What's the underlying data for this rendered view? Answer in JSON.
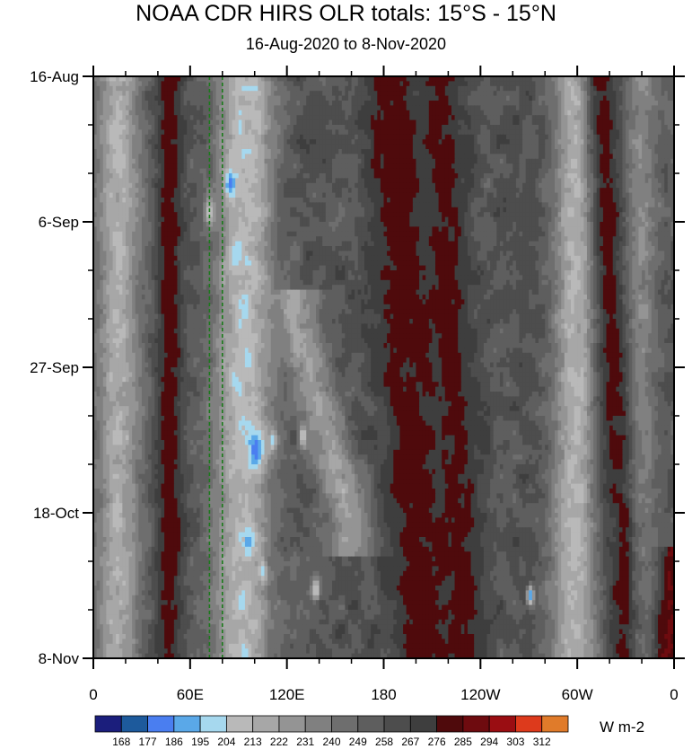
{
  "chart_data": {
    "type": "heatmap",
    "title": "NOAA CDR HIRS OLR totals: 15°S - 15°N",
    "subtitle": "16-Aug-2020 to 8-Nov-2020",
    "x_ticks": [
      {
        "lon": 0,
        "label": "0"
      },
      {
        "lon": 60,
        "label": "60E"
      },
      {
        "lon": 120,
        "label": "120E"
      },
      {
        "lon": 180,
        "label": "180"
      },
      {
        "lon": 240,
        "label": "120W"
      },
      {
        "lon": 300,
        "label": "60W"
      },
      {
        "lon": 360,
        "label": "0"
      }
    ],
    "y_ticks": [
      {
        "day": 0,
        "label": "16-Aug"
      },
      {
        "day": 21,
        "label": "6-Sep"
      },
      {
        "day": 42,
        "label": "27-Sep"
      },
      {
        "day": 63,
        "label": "18-Oct"
      },
      {
        "day": 84,
        "label": "8-Nov"
      }
    ],
    "xlim": [
      0,
      360
    ],
    "ylim_days": [
      0,
      84
    ],
    "reference_lines_lon": [
      72,
      80
    ],
    "units": "W m-2",
    "colorbar": {
      "levels": [
        168,
        177,
        186,
        195,
        204,
        213,
        222,
        231,
        240,
        249,
        258,
        267,
        276,
        285,
        294,
        303,
        312
      ],
      "colors": [
        "#1b1e7c",
        "#1d5a9c",
        "#4a7ef0",
        "#5aa8e8",
        "#a6d8ee",
        "#b9b9b9",
        "#a7a7a7",
        "#949494",
        "#808080",
        "#6e6e6e",
        "#5e5e5e",
        "#4d4d4d",
        "#3e3e3e",
        "#4f0a0c",
        "#6e0b0f",
        "#9a0d12",
        "#dd3a1c",
        "#e07b2a"
      ]
    },
    "features": {
      "convective_bands": [
        {
          "lon0": 15,
          "lon1": 15,
          "day0": 0,
          "day1": 84,
          "olr": 215,
          "width": 14
        },
        {
          "lon0": 95,
          "lon1": 92,
          "day0": 0,
          "day1": 84,
          "olr": 208,
          "width": 18
        },
        {
          "lon0": 125,
          "lon1": 160,
          "day0": 35,
          "day1": 65,
          "olr": 222,
          "width": 14
        },
        {
          "lon0": 300,
          "lon1": 298,
          "day0": 0,
          "day1": 84,
          "olr": 212,
          "width": 14
        },
        {
          "lon0": 340,
          "lon1": 335,
          "day0": 0,
          "day1": 84,
          "olr": 232,
          "width": 12
        }
      ],
      "deep_convection": [
        {
          "lon": 85,
          "day": 15.5,
          "olr": 178,
          "r": 2
        },
        {
          "lon": 72,
          "day": 19.5,
          "olr": 200,
          "r": 2
        },
        {
          "lon": 88,
          "day": 26,
          "olr": 198,
          "r": 2.5
        },
        {
          "lon": 97,
          "day": 40.5,
          "olr": 202,
          "r": 2
        },
        {
          "lon": 88,
          "day": 44,
          "olr": 198,
          "r": 2
        },
        {
          "lon": 101,
          "day": 54,
          "olr": 180,
          "r": 3
        },
        {
          "lon": 111,
          "day": 52.5,
          "olr": 200,
          "r": 1.6
        },
        {
          "lon": 130,
          "day": 52,
          "olr": 196,
          "r": 1.5
        },
        {
          "lon": 96,
          "day": 67,
          "olr": 190,
          "r": 2
        },
        {
          "lon": 105,
          "day": 71.5,
          "olr": 200,
          "r": 1.6
        },
        {
          "lon": 138,
          "day": 74,
          "olr": 198,
          "r": 1.5
        },
        {
          "lon": 271,
          "day": 75,
          "olr": 186,
          "r": 1.5
        }
      ],
      "dry_bands": [
        {
          "lon0": 47,
          "lon1": 47,
          "day0": 0,
          "day1": 84,
          "olr": 282,
          "width": 8
        },
        {
          "lon0": 185,
          "lon1": 205,
          "day0": 2,
          "day1": 84,
          "olr": 283,
          "width": 18
        },
        {
          "lon0": 215,
          "lon1": 230,
          "day0": 0,
          "day1": 84,
          "olr": 280,
          "width": 14
        },
        {
          "lon0": 315,
          "lon1": 330,
          "day0": 0,
          "day1": 84,
          "olr": 280,
          "width": 10
        },
        {
          "lon0": 360,
          "lon1": 355,
          "day0": 70,
          "day1": 84,
          "olr": 285,
          "width": 8
        }
      ]
    }
  }
}
